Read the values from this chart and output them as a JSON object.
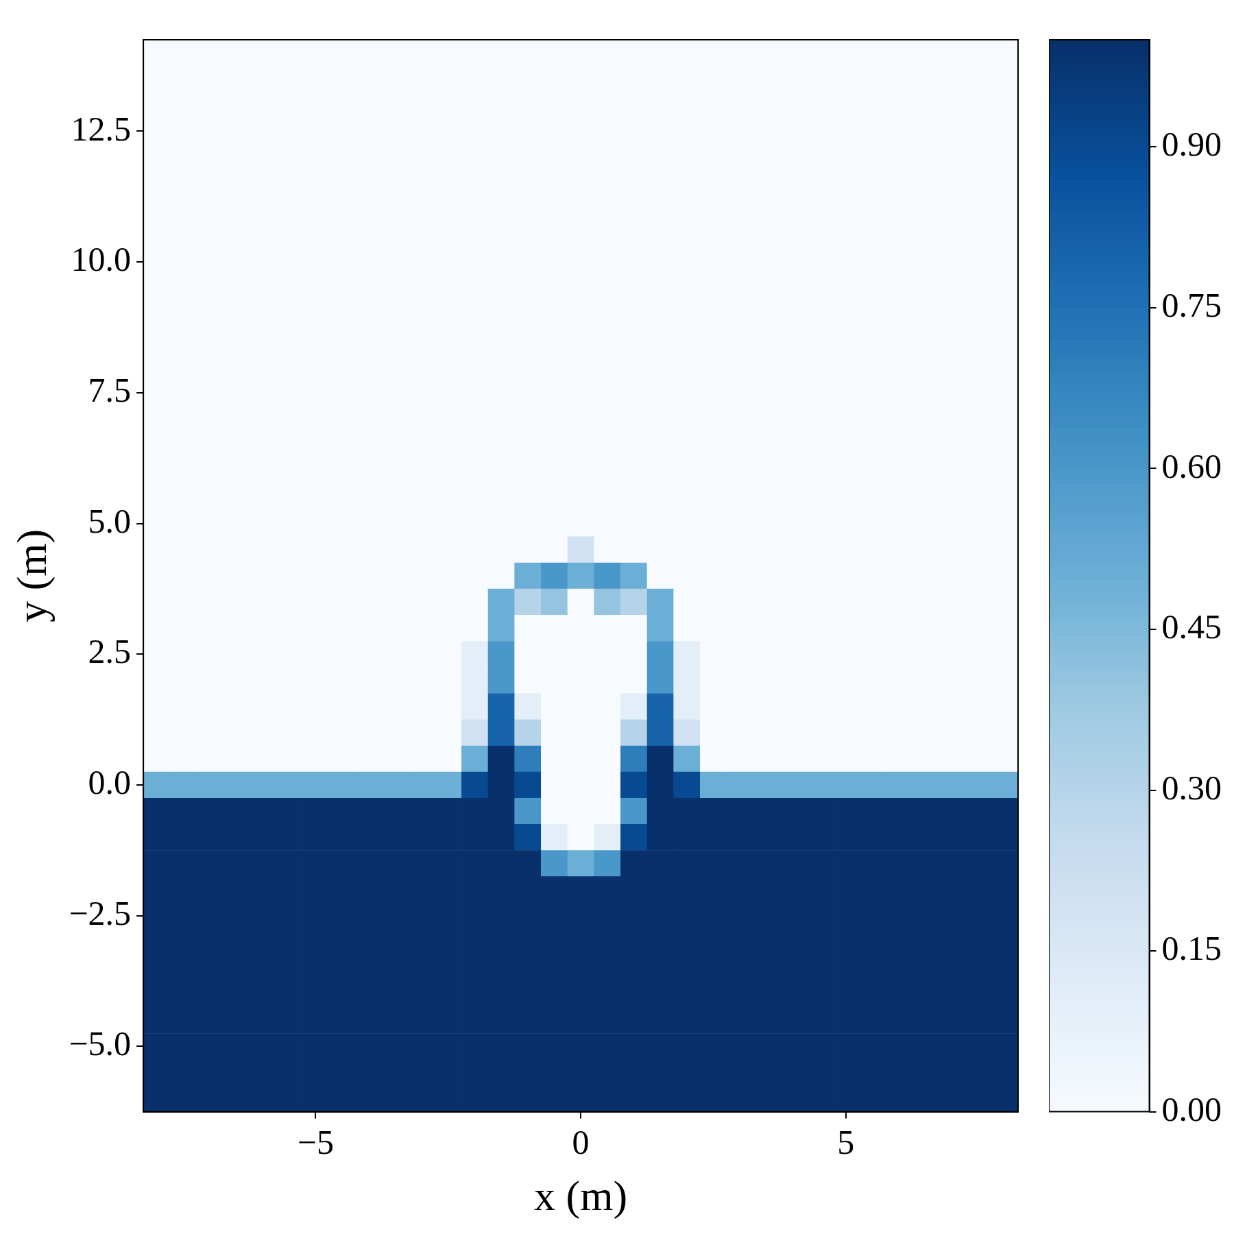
{
  "chart_data": {
    "type": "heatmap",
    "xlabel": "x (m)",
    "ylabel": "y (m)",
    "clim": [
      0,
      1
    ],
    "cticks": [
      {
        "value": 0,
        "label": "0.00"
      },
      {
        "value": 0.15,
        "label": "0.15"
      },
      {
        "value": 0.3,
        "label": "0.30"
      },
      {
        "value": 0.45,
        "label": "0.45"
      },
      {
        "value": 0.6,
        "label": "0.60"
      },
      {
        "value": 0.75,
        "label": "0.75"
      },
      {
        "value": 0.9,
        "label": "0.90"
      }
    ],
    "categories": [
      null,
      null,
      null,
      null,
      null,
      null,
      "−5",
      null,
      null,
      null,
      null,
      null,
      null,
      null,
      null,
      null,
      "0",
      null,
      null,
      null,
      null,
      null,
      null,
      null,
      null,
      null,
      "5",
      null,
      null,
      null,
      null,
      null,
      null
    ],
    "y_categories": [
      null,
      null,
      null,
      "12.5",
      null,
      null,
      null,
      null,
      "10.0",
      null,
      null,
      null,
      null,
      "7.5",
      null,
      null,
      null,
      null,
      "5.0",
      null,
      null,
      null,
      null,
      "2.5",
      null,
      null,
      null,
      null,
      "0.0",
      null,
      null,
      null,
      null,
      "−2.5",
      null,
      null,
      null,
      null,
      "−5.0",
      null,
      null
    ],
    "cells": [
      [
        0,
        0,
        0,
        0,
        0,
        0,
        0,
        0,
        0,
        0,
        0,
        0,
        0,
        0,
        0,
        0,
        0,
        0,
        0,
        0,
        0,
        0,
        0,
        0,
        0,
        0,
        0,
        0,
        0,
        0,
        0,
        0,
        0
      ],
      [
        0,
        0,
        0,
        0,
        0,
        0,
        0,
        0,
        0,
        0,
        0,
        0,
        0,
        0,
        0,
        0,
        0,
        0,
        0,
        0,
        0,
        0,
        0,
        0,
        0,
        0,
        0,
        0,
        0,
        0,
        0,
        0,
        0
      ],
      [
        0,
        0,
        0,
        0,
        0,
        0,
        0,
        0,
        0,
        0,
        0,
        0,
        0,
        0,
        0,
        0,
        0,
        0,
        0,
        0,
        0,
        0,
        0,
        0,
        0,
        0,
        0,
        0,
        0,
        0,
        0,
        0,
        0
      ],
      [
        0,
        0,
        0,
        0,
        0,
        0,
        0,
        0,
        0,
        0,
        0,
        0,
        0,
        0,
        0,
        0,
        0,
        0,
        0,
        0,
        0,
        0,
        0,
        0,
        0,
        0,
        0,
        0,
        0,
        0,
        0,
        0,
        0
      ],
      [
        0,
        0,
        0,
        0,
        0,
        0,
        0,
        0,
        0,
        0,
        0,
        0,
        0,
        0,
        0,
        0,
        0,
        0,
        0,
        0,
        0,
        0,
        0,
        0,
        0,
        0,
        0,
        0,
        0,
        0,
        0,
        0,
        0
      ],
      [
        0,
        0,
        0,
        0,
        0,
        0,
        0,
        0,
        0,
        0,
        0,
        0,
        0,
        0,
        0,
        0,
        0,
        0,
        0,
        0,
        0,
        0,
        0,
        0,
        0,
        0,
        0,
        0,
        0,
        0,
        0,
        0,
        0
      ],
      [
        0,
        0,
        0,
        0,
        0,
        0,
        0,
        0,
        0,
        0,
        0,
        0,
        0,
        0,
        0,
        0,
        0,
        0,
        0,
        0,
        0,
        0,
        0,
        0,
        0,
        0,
        0,
        0,
        0,
        0,
        0,
        0,
        0
      ],
      [
        0,
        0,
        0,
        0,
        0,
        0,
        0,
        0,
        0,
        0,
        0,
        0,
        0,
        0,
        0,
        0,
        0,
        0,
        0,
        0,
        0,
        0,
        0,
        0,
        0,
        0,
        0,
        0,
        0,
        0,
        0,
        0,
        0
      ],
      [
        0,
        0,
        0,
        0,
        0,
        0,
        0,
        0,
        0,
        0,
        0,
        0,
        0,
        0,
        0,
        0,
        0,
        0,
        0,
        0,
        0,
        0,
        0,
        0,
        0,
        0,
        0,
        0,
        0,
        0,
        0,
        0,
        0
      ],
      [
        0,
        0,
        0,
        0,
        0,
        0,
        0,
        0,
        0,
        0,
        0,
        0,
        0,
        0,
        0,
        0,
        0,
        0,
        0,
        0,
        0,
        0,
        0,
        0,
        0,
        0,
        0,
        0,
        0,
        0,
        0,
        0,
        0
      ],
      [
        0,
        0,
        0,
        0,
        0,
        0,
        0,
        0,
        0,
        0,
        0,
        0,
        0,
        0,
        0,
        0,
        0,
        0,
        0,
        0,
        0,
        0,
        0,
        0,
        0,
        0,
        0,
        0,
        0,
        0,
        0,
        0,
        0
      ],
      [
        0,
        0,
        0,
        0,
        0,
        0,
        0,
        0,
        0,
        0,
        0,
        0,
        0,
        0,
        0,
        0,
        0,
        0,
        0,
        0,
        0,
        0,
        0,
        0,
        0,
        0,
        0,
        0,
        0,
        0,
        0,
        0,
        0
      ],
      [
        0,
        0,
        0,
        0,
        0,
        0,
        0,
        0,
        0,
        0,
        0,
        0,
        0,
        0,
        0,
        0,
        0,
        0,
        0,
        0,
        0,
        0,
        0,
        0,
        0,
        0,
        0,
        0,
        0,
        0,
        0,
        0,
        0
      ],
      [
        0,
        0,
        0,
        0,
        0,
        0,
        0,
        0,
        0,
        0,
        0,
        0,
        0,
        0,
        0,
        0,
        0,
        0,
        0,
        0,
        0,
        0,
        0,
        0,
        0,
        0,
        0,
        0,
        0,
        0,
        0,
        0,
        0
      ],
      [
        0,
        0,
        0,
        0,
        0,
        0,
        0,
        0,
        0,
        0,
        0,
        0,
        0,
        0,
        0,
        0,
        0,
        0,
        0,
        0,
        0,
        0,
        0,
        0,
        0,
        0,
        0,
        0,
        0,
        0,
        0,
        0,
        0
      ],
      [
        0,
        0,
        0,
        0,
        0,
        0,
        0,
        0,
        0,
        0,
        0,
        0,
        0,
        0,
        0,
        0,
        0,
        0,
        0,
        0,
        0,
        0,
        0,
        0,
        0,
        0,
        0,
        0,
        0,
        0,
        0,
        0,
        0
      ],
      [
        0,
        0,
        0,
        0,
        0,
        0,
        0,
        0,
        0,
        0,
        0,
        0,
        0,
        0,
        0,
        0,
        0,
        0,
        0,
        0,
        0,
        0,
        0,
        0,
        0,
        0,
        0,
        0,
        0,
        0,
        0,
        0,
        0
      ],
      [
        0,
        0,
        0,
        0,
        0,
        0,
        0,
        0,
        0,
        0,
        0,
        0,
        0,
        0,
        0,
        0,
        0,
        0,
        0,
        0,
        0,
        0,
        0,
        0,
        0,
        0,
        0,
        0,
        0,
        0,
        0,
        0,
        0
      ],
      [
        0,
        0,
        0,
        0,
        0,
        0,
        0,
        0,
        0,
        0,
        0,
        0,
        0,
        0,
        0,
        0,
        0,
        0,
        0,
        0,
        0,
        0,
        0,
        0,
        0,
        0,
        0,
        0,
        0,
        0,
        0,
        0,
        0
      ],
      [
        0,
        0,
        0,
        0,
        0,
        0,
        0,
        0,
        0,
        0,
        0,
        0,
        0,
        0,
        0,
        0,
        0.2,
        0,
        0,
        0,
        0,
        0,
        0,
        0,
        0,
        0,
        0,
        0,
        0,
        0,
        0,
        0,
        0
      ],
      [
        0,
        0,
        0,
        0,
        0,
        0,
        0,
        0,
        0,
        0,
        0,
        0,
        0,
        0,
        0.5,
        0.6,
        0.5,
        0.6,
        0.5,
        0,
        0,
        0,
        0,
        0,
        0,
        0,
        0,
        0,
        0,
        0,
        0,
        0,
        0
      ],
      [
        0,
        0,
        0,
        0,
        0,
        0,
        0,
        0,
        0,
        0,
        0,
        0,
        0,
        0.5,
        0.3,
        0.4,
        0,
        0.4,
        0.3,
        0.5,
        0,
        0,
        0,
        0,
        0,
        0,
        0,
        0,
        0,
        0,
        0,
        0,
        0
      ],
      [
        0,
        0,
        0,
        0,
        0,
        0,
        0,
        0,
        0,
        0,
        0,
        0,
        0,
        0.5,
        0,
        0,
        0,
        0,
        0,
        0.5,
        0,
        0,
        0,
        0,
        0,
        0,
        0,
        0,
        0,
        0,
        0,
        0,
        0
      ],
      [
        0,
        0,
        0,
        0,
        0,
        0,
        0,
        0,
        0,
        0,
        0,
        0,
        0.1,
        0.6,
        0,
        0,
        0,
        0,
        0,
        0.6,
        0.1,
        0,
        0,
        0,
        0,
        0,
        0,
        0,
        0,
        0,
        0,
        0,
        0
      ],
      [
        0,
        0,
        0,
        0,
        0,
        0,
        0,
        0,
        0,
        0,
        0,
        0,
        0.1,
        0.6,
        0,
        0,
        0,
        0,
        0,
        0.6,
        0.1,
        0,
        0,
        0,
        0,
        0,
        0,
        0,
        0,
        0,
        0,
        0,
        0
      ],
      [
        0,
        0,
        0,
        0,
        0,
        0,
        0,
        0,
        0,
        0,
        0,
        0,
        0.1,
        0.8,
        0.1,
        0,
        0,
        0,
        0.1,
        0.8,
        0.1,
        0,
        0,
        0,
        0,
        0,
        0,
        0,
        0,
        0,
        0,
        0,
        0
      ],
      [
        0,
        0,
        0,
        0,
        0,
        0,
        0,
        0,
        0,
        0,
        0,
        0,
        0.2,
        0.8,
        0.3,
        0,
        0,
        0,
        0.3,
        0.8,
        0.2,
        0,
        0,
        0,
        0,
        0,
        0,
        0,
        0,
        0,
        0,
        0,
        0
      ],
      [
        0,
        0,
        0,
        0,
        0,
        0,
        0,
        0,
        0,
        0,
        0,
        0,
        0.5,
        1,
        0.7,
        0,
        0,
        0,
        0.7,
        1,
        0.5,
        0,
        0,
        0,
        0,
        0,
        0,
        0,
        0,
        0,
        0,
        0,
        0
      ],
      [
        0.5,
        0.5,
        0.5,
        0.5,
        0.5,
        0.5,
        0.5,
        0.5,
        0.5,
        0.5,
        0.5,
        0.5,
        0.9,
        1,
        0.9,
        0,
        0,
        0,
        0.9,
        1,
        0.9,
        0.5,
        0.5,
        0.5,
        0.5,
        0.5,
        0.5,
        0.5,
        0.5,
        0.5,
        0.5,
        0.5,
        0.5
      ],
      [
        1,
        1,
        1,
        1,
        1,
        1,
        1,
        1,
        1,
        1,
        1,
        1,
        1,
        1,
        0.6,
        0,
        0,
        0,
        0.6,
        1,
        1,
        1,
        1,
        1,
        1,
        1,
        1,
        1,
        1,
        1,
        1,
        1,
        1
      ],
      [
        1,
        1,
        1,
        1,
        1,
        1,
        1,
        1,
        1,
        1,
        1,
        1,
        1,
        1,
        0.9,
        0.1,
        0,
        0.1,
        0.9,
        1,
        1,
        1,
        1,
        1,
        1,
        1,
        1,
        1,
        1,
        1,
        1,
        1,
        1
      ],
      [
        1,
        1,
        1,
        1,
        1,
        1,
        1,
        1,
        1,
        1,
        1,
        1,
        1,
        1,
        1,
        0.6,
        0.5,
        0.6,
        1,
        1,
        1,
        1,
        1,
        1,
        1,
        1,
        1,
        1,
        1,
        1,
        1,
        1,
        1
      ],
      [
        1,
        1,
        1,
        1,
        1,
        1,
        1,
        1,
        1,
        1,
        1,
        1,
        1,
        1,
        1,
        1,
        1,
        1,
        1,
        1,
        1,
        1,
        1,
        1,
        1,
        1,
        1,
        1,
        1,
        1,
        1,
        1,
        1
      ],
      [
        1,
        1,
        1,
        1,
        1,
        1,
        1,
        1,
        1,
        1,
        1,
        1,
        1,
        1,
        1,
        1,
        1,
        1,
        1,
        1,
        1,
        1,
        1,
        1,
        1,
        1,
        1,
        1,
        1,
        1,
        1,
        1,
        1
      ],
      [
        1,
        1,
        1,
        1,
        1,
        1,
        1,
        1,
        1,
        1,
        1,
        1,
        1,
        1,
        1,
        1,
        1,
        1,
        1,
        1,
        1,
        1,
        1,
        1,
        1,
        1,
        1,
        1,
        1,
        1,
        1,
        1,
        1
      ],
      [
        1,
        1,
        1,
        1,
        1,
        1,
        1,
        1,
        1,
        1,
        1,
        1,
        1,
        1,
        1,
        1,
        1,
        1,
        1,
        1,
        1,
        1,
        1,
        1,
        1,
        1,
        1,
        1,
        1,
        1,
        1,
        1,
        1
      ],
      [
        1,
        1,
        1,
        1,
        1,
        1,
        1,
        1,
        1,
        1,
        1,
        1,
        1,
        1,
        1,
        1,
        1,
        1,
        1,
        1,
        1,
        1,
        1,
        1,
        1,
        1,
        1,
        1,
        1,
        1,
        1,
        1,
        1
      ],
      [
        1,
        1,
        1,
        1,
        1,
        1,
        1,
        1,
        1,
        1,
        1,
        1,
        1,
        1,
        1,
        1,
        1,
        1,
        1,
        1,
        1,
        1,
        1,
        1,
        1,
        1,
        1,
        1,
        1,
        1,
        1,
        1,
        1
      ],
      [
        1,
        1,
        1,
        1,
        1,
        1,
        1,
        1,
        1,
        1,
        1,
        1,
        1,
        1,
        1,
        1,
        1,
        1,
        1,
        1,
        1,
        1,
        1,
        1,
        1,
        1,
        1,
        1,
        1,
        1,
        1,
        1,
        1
      ],
      [
        1,
        1,
        1,
        1,
        1,
        1,
        1,
        1,
        1,
        1,
        1,
        1,
        1,
        1,
        1,
        1,
        1,
        1,
        1,
        1,
        1,
        1,
        1,
        1,
        1,
        1,
        1,
        1,
        1,
        1,
        1,
        1,
        1
      ],
      [
        1,
        1,
        1,
        1,
        1,
        1,
        1,
        1,
        1,
        1,
        1,
        1,
        1,
        1,
        1,
        1,
        1,
        1,
        1,
        1,
        1,
        1,
        1,
        1,
        1,
        1,
        1,
        1,
        1,
        1,
        1,
        1,
        1
      ]
    ]
  }
}
